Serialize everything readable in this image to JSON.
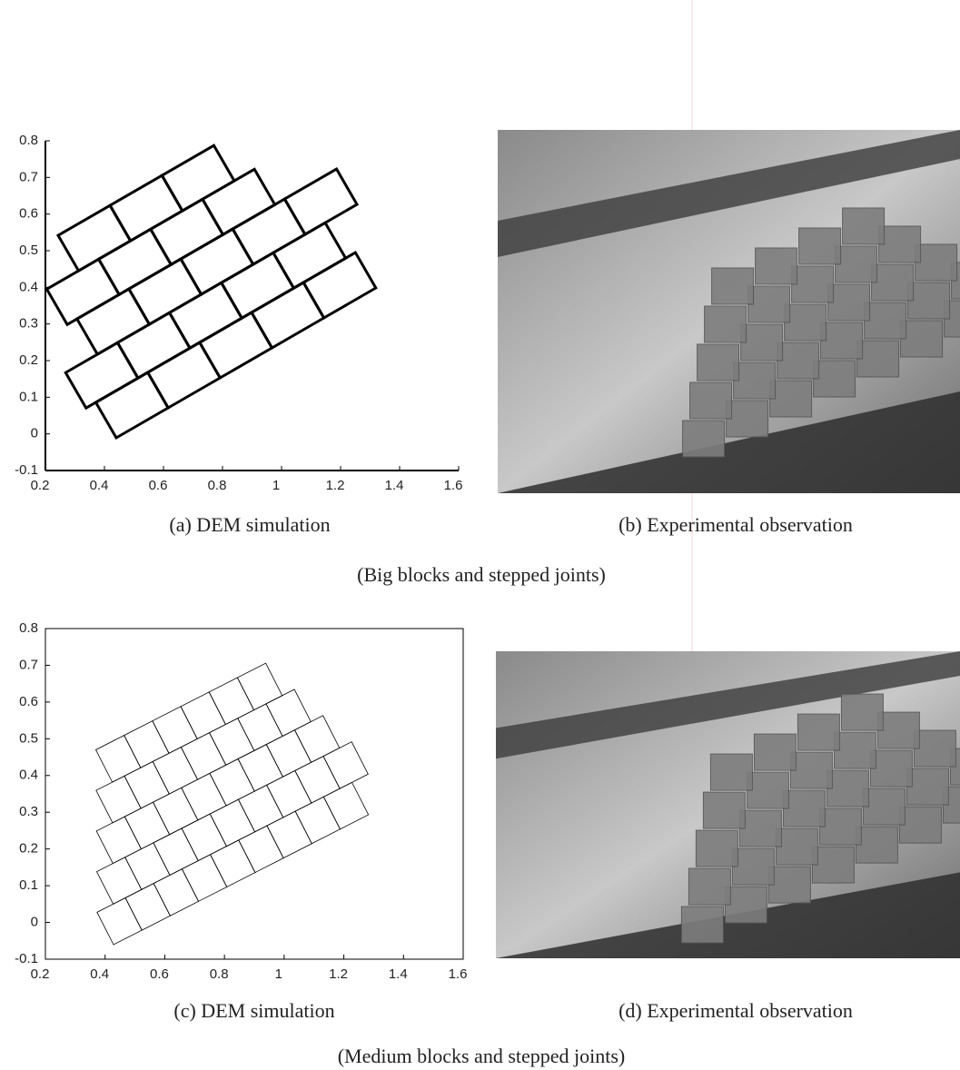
{
  "panels": [
    {
      "caption": "(a) DEM simulation",
      "xlim": [
        0.2,
        1.6
      ],
      "ylim": [
        -0.1,
        0.8
      ],
      "xticks": [
        0.2,
        0.4,
        0.6,
        0.8,
        1,
        1.2,
        1.4,
        1.6
      ],
      "yticks": [
        -0.1,
        0,
        0.1,
        0.2,
        0.3,
        0.4,
        0.5,
        0.6,
        0.7,
        0.8
      ]
    },
    {
      "caption": "(b) Experimental observation"
    },
    {
      "caption": "(c) DEM simulation",
      "xlim": [
        0.2,
        1.6
      ],
      "ylim": [
        -0.1,
        0.8
      ],
      "xticks": [
        0.2,
        0.4,
        0.6,
        0.8,
        1,
        1.2,
        1.4,
        1.6
      ],
      "yticks": [
        -0.1,
        0,
        0.1,
        0.2,
        0.3,
        0.4,
        0.5,
        0.6,
        0.7,
        0.8
      ]
    },
    {
      "caption": "(d) Experimental observation"
    }
  ],
  "groups": [
    "(Big blocks and stepped joints)",
    "(Medium blocks and stepped joints)"
  ]
}
